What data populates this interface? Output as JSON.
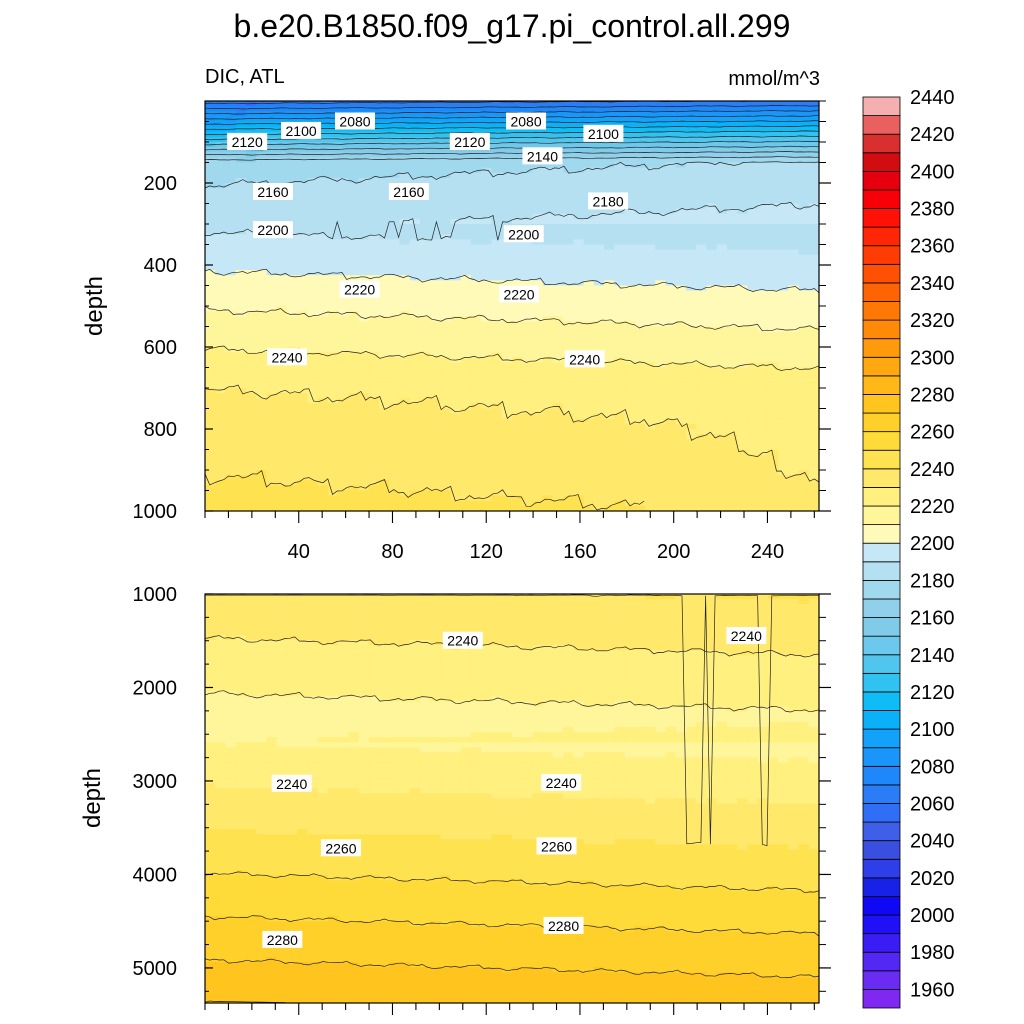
{
  "chart_data": {
    "type": "contour",
    "title": "b.e20.B1850.f09_g17.pi_control.all.299",
    "variable_label": "DIC, ATL",
    "units": "mmol/m^3",
    "ylabel": "depth",
    "x_ticks": [
      40,
      80,
      120,
      160,
      200,
      240
    ],
    "xlim": [
      0,
      262
    ],
    "contour_interval": 10,
    "colorbar": {
      "levels": [
        1960,
        1970,
        1980,
        1990,
        2000,
        2010,
        2020,
        2030,
        2040,
        2050,
        2060,
        2070,
        2080,
        2090,
        2100,
        2110,
        2120,
        2130,
        2140,
        2150,
        2160,
        2170,
        2180,
        2190,
        2200,
        2210,
        2220,
        2230,
        2240,
        2250,
        2260,
        2270,
        2280,
        2290,
        2300,
        2310,
        2320,
        2330,
        2340,
        2350,
        2360,
        2370,
        2380,
        2390,
        2400,
        2410,
        2420,
        2430,
        2440,
        2450
      ],
      "labels": [
        1960,
        1980,
        2000,
        2020,
        2040,
        2060,
        2080,
        2100,
        2120,
        2140,
        2160,
        2180,
        2200,
        2220,
        2240,
        2260,
        2280,
        2300,
        2320,
        2340,
        2360,
        2380,
        2400,
        2420,
        2440
      ],
      "colors": [
        "#7f29f0",
        "#6a2cf2",
        "#5428f4",
        "#3a1cf5",
        "#1f10f7",
        "#0e08f5",
        "#1822e6",
        "#2e3ee8",
        "#3a4ee0",
        "#3f5fe8",
        "#2f6ef5",
        "#2a7cf7",
        "#1e88fb",
        "#1a96fb",
        "#12a2fb",
        "#0ab0f8",
        "#10bcf5",
        "#30c2f0",
        "#50c6ee",
        "#6cc8ec",
        "#7fcbe8",
        "#90d0ea",
        "#a0d8ee",
        "#b4e0f2",
        "#c6e8f6",
        "#fffab8",
        "#fff59a",
        "#fff07f",
        "#ffe86a",
        "#ffe250",
        "#ffdb3a",
        "#ffd02a",
        "#ffc51e",
        "#ffb818",
        "#ffa810",
        "#ff9a0c",
        "#ff8a08",
        "#ff7805",
        "#ff6404",
        "#ff5004",
        "#ff3c04",
        "#ff2605",
        "#ff1106",
        "#f70008",
        "#e6000e",
        "#d20d12",
        "#d8302e",
        "#e86060",
        "#f4b0b0"
      ]
    },
    "panels": [
      {
        "name": "upper",
        "ylim": [
          0,
          1000
        ],
        "y_ticks": [
          200,
          400,
          600,
          800,
          1000
        ],
        "contour_labels": [
          {
            "value": 2080,
            "x": 64,
            "depth": 50
          },
          {
            "value": 2080,
            "x": 137,
            "depth": 50
          },
          {
            "value": 2100,
            "x": 41,
            "depth": 73
          },
          {
            "value": 2100,
            "x": 170,
            "depth": 80
          },
          {
            "value": 2120,
            "x": 18,
            "depth": 100
          },
          {
            "value": 2120,
            "x": 113,
            "depth": 100
          },
          {
            "value": 2140,
            "x": 144,
            "depth": 135
          },
          {
            "value": 2160,
            "x": 29,
            "depth": 222
          },
          {
            "value": 2160,
            "x": 87,
            "depth": 222
          },
          {
            "value": 2180,
            "x": 172,
            "depth": 245
          },
          {
            "value": 2200,
            "x": 29,
            "depth": 315
          },
          {
            "value": 2200,
            "x": 136,
            "depth": 325
          },
          {
            "value": 2220,
            "x": 66,
            "depth": 460
          },
          {
            "value": 2220,
            "x": 134,
            "depth": 472
          },
          {
            "value": 2240,
            "x": 35,
            "depth": 625
          },
          {
            "value": 2240,
            "x": 162,
            "depth": 630
          }
        ]
      },
      {
        "name": "lower",
        "ylim": [
          1000,
          5375
        ],
        "y_ticks": [
          1000,
          2000,
          3000,
          4000,
          5000
        ],
        "contour_labels": [
          {
            "value": 2240,
            "x": 110,
            "depth": 1500
          },
          {
            "value": 2240,
            "x": 231,
            "depth": 1450
          },
          {
            "value": 2240,
            "x": 37,
            "depth": 3030
          },
          {
            "value": 2240,
            "x": 152,
            "depth": 3020
          },
          {
            "value": 2260,
            "x": 58,
            "depth": 3720
          },
          {
            "value": 2260,
            "x": 150,
            "depth": 3700
          },
          {
            "value": 2280,
            "x": 33,
            "depth": 4700
          },
          {
            "value": 2280,
            "x": 153,
            "depth": 4550
          }
        ]
      }
    ]
  }
}
